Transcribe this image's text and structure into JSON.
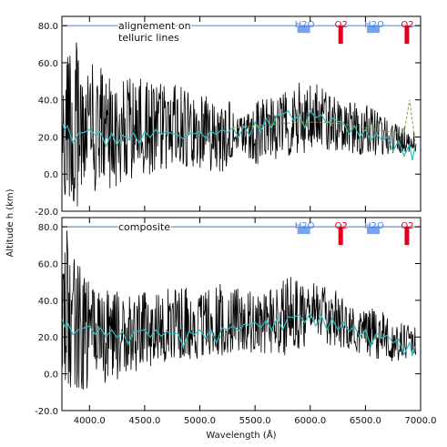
{
  "chart_data": {
    "type": "line",
    "xlabel": "Wavelength (Å)",
    "ylabel": "Altitude h (km)",
    "xlim": [
      3750,
      7000
    ],
    "ylim": [
      -20,
      85
    ],
    "xticks": [
      4000,
      4500,
      5000,
      5500,
      6000,
      6500,
      7000
    ],
    "xtick_labels": [
      "4000.0",
      "4500.0",
      "5000.0",
      "5500.0",
      "6000.0",
      "6500.0",
      "7000.0"
    ],
    "yticks": [
      -20,
      0,
      20,
      40,
      60,
      80
    ],
    "ytick_labels": [
      "-20.0",
      "0.0",
      "20.0",
      "40.0",
      "60.0",
      "80.0"
    ],
    "reference_line": {
      "y": 80,
      "color": "#6d8fd6"
    },
    "absorption_bands": [
      {
        "label": "H2O",
        "x": 5900,
        "color": "#4a86e8"
      },
      {
        "label": "O2",
        "x": 6280,
        "color": "#e0001a"
      },
      {
        "label": "H2O",
        "x": 6530,
        "color": "#4a86e8"
      },
      {
        "label": "O2",
        "x": 6880,
        "color": "#e0001a"
      }
    ],
    "panels": [
      {
        "title": "alignement on telluric lines",
        "title_lines": [
          "alignement on",
          "telluric lines"
        ],
        "series": [
          {
            "color": "#000000",
            "envelope": {
              "x": [
                3750,
                3800,
                4000,
                4200,
                4400,
                4600,
                4800,
                5000,
                5200,
                5290,
                5310,
                5500,
                5700,
                5900,
                6100,
                6300,
                6500,
                6700,
                6900
              ],
              "upper": [
                85,
                80,
                60,
                55,
                52,
                50,
                48,
                45,
                42,
                40,
                28,
                40,
                42,
                50,
                48,
                40,
                38,
                30,
                24
              ],
              "lower": [
                -20,
                -20,
                -15,
                -8,
                -5,
                0,
                5,
                3,
                0,
                5,
                15,
                5,
                8,
                10,
                12,
                12,
                10,
                10,
                12
              ]
            }
          },
          {
            "color": "#2bbfc2",
            "x": [
              3750,
              3800,
              3900,
              4000,
              4100,
              4200,
              4300,
              4400,
              4500,
              4600,
              4700,
              4800,
              4900,
              5000,
              5100,
              5200,
              5300,
              5400,
              5500,
              5600,
              5700,
              5800,
              5900,
              6000,
              6100,
              6200,
              6300,
              6400,
              6500,
              6600,
              6700,
              6800,
              6900,
              6950
            ],
            "y": [
              28,
              26,
              22,
              24,
              23,
              22,
              21,
              22,
              23,
              24,
              23,
              21,
              22,
              23,
              23,
              24,
              25,
              26,
              28,
              30,
              32,
              34,
              32,
              34,
              32,
              30,
              28,
              26,
              24,
              22,
              20,
              18,
              16,
              15
            ]
          },
          {
            "color": "#7aa23a",
            "x": [
              5300,
              5500,
              5700,
              5900,
              6100,
              6300,
              6500,
              6700,
              6850,
              6900,
              6950
            ],
            "y": [
              25,
              26,
              27,
              28,
              28,
              27,
              25,
              23,
              22,
              40,
              18
            ]
          }
        ]
      },
      {
        "title": "composite",
        "series": [
          {
            "color": "#000000",
            "envelope": {
              "x": [
                3750,
                3800,
                4000,
                4200,
                4400,
                4600,
                4800,
                5000,
                5200,
                5400,
                5600,
                5800,
                6000,
                6200,
                6400,
                6600,
                6800,
                6900
              ],
              "upper": [
                80,
                78,
                50,
                46,
                44,
                45,
                48,
                46,
                50,
                45,
                46,
                55,
                50,
                48,
                40,
                35,
                30,
                26
              ],
              "lower": [
                -20,
                -20,
                -10,
                -5,
                0,
                5,
                8,
                8,
                10,
                12,
                10,
                10,
                15,
                15,
                12,
                8,
                5,
                10
              ]
            }
          },
          {
            "color": "#2bbfc2",
            "x": [
              3750,
              3800,
              3900,
              4000,
              4100,
              4200,
              4300,
              4400,
              4500,
              4600,
              4700,
              4800,
              4900,
              5000,
              5100,
              5200,
              5300,
              5400,
              5500,
              5600,
              5700,
              5800,
              5900,
              6000,
              6100,
              6200,
              6300,
              6400,
              6500,
              6600,
              6700,
              6800,
              6900,
              6950
            ],
            "y": [
              30,
              28,
              24,
              26,
              25,
              24,
              23,
              23,
              24,
              24,
              23,
              22,
              23,
              24,
              24,
              25,
              26,
              27,
              28,
              29,
              30,
              31,
              32,
              33,
              32,
              30,
              28,
              26,
              24,
              22,
              21,
              19,
              17,
              15
            ]
          }
        ]
      }
    ]
  }
}
